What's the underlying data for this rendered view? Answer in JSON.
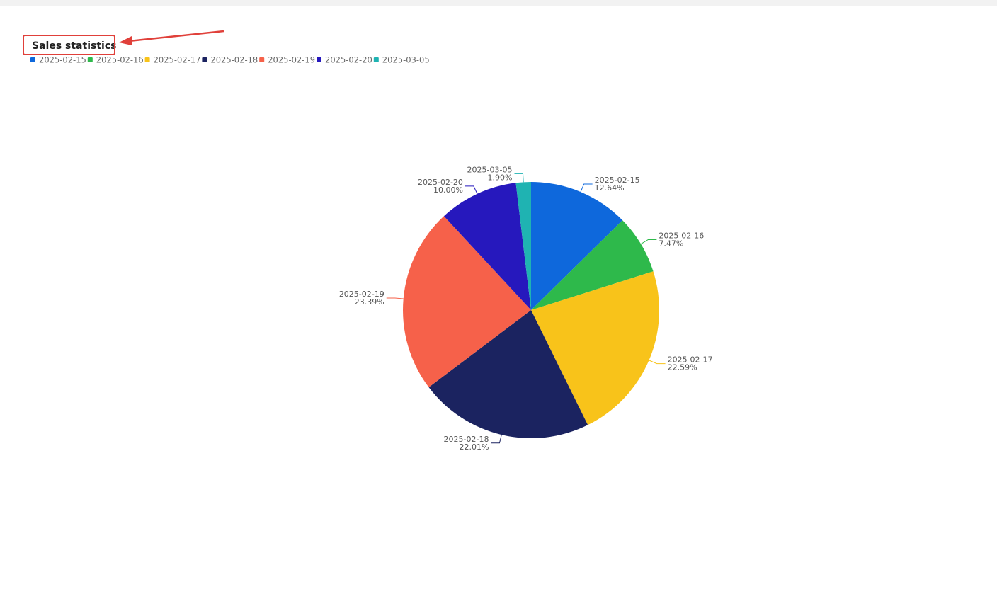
{
  "chart_data": {
    "type": "pie",
    "title": "Sales statistics",
    "categories": [
      "2025-02-15",
      "2025-02-16",
      "2025-02-17",
      "2025-02-18",
      "2025-02-19",
      "2025-02-20",
      "2025-03-05"
    ],
    "values": [
      12.64,
      7.47,
      22.59,
      22.01,
      23.39,
      10.0,
      1.9
    ],
    "value_labels": [
      "12.64%",
      "7.47%",
      "22.59%",
      "22.01%",
      "23.39%",
      "10.00%",
      "1.90%"
    ],
    "colors": [
      "#0e68dc",
      "#2eb94b",
      "#f8c31a",
      "#1b2360",
      "#f6614a",
      "#2618bd",
      "#1fb3b2"
    ],
    "legend": "top-left"
  }
}
